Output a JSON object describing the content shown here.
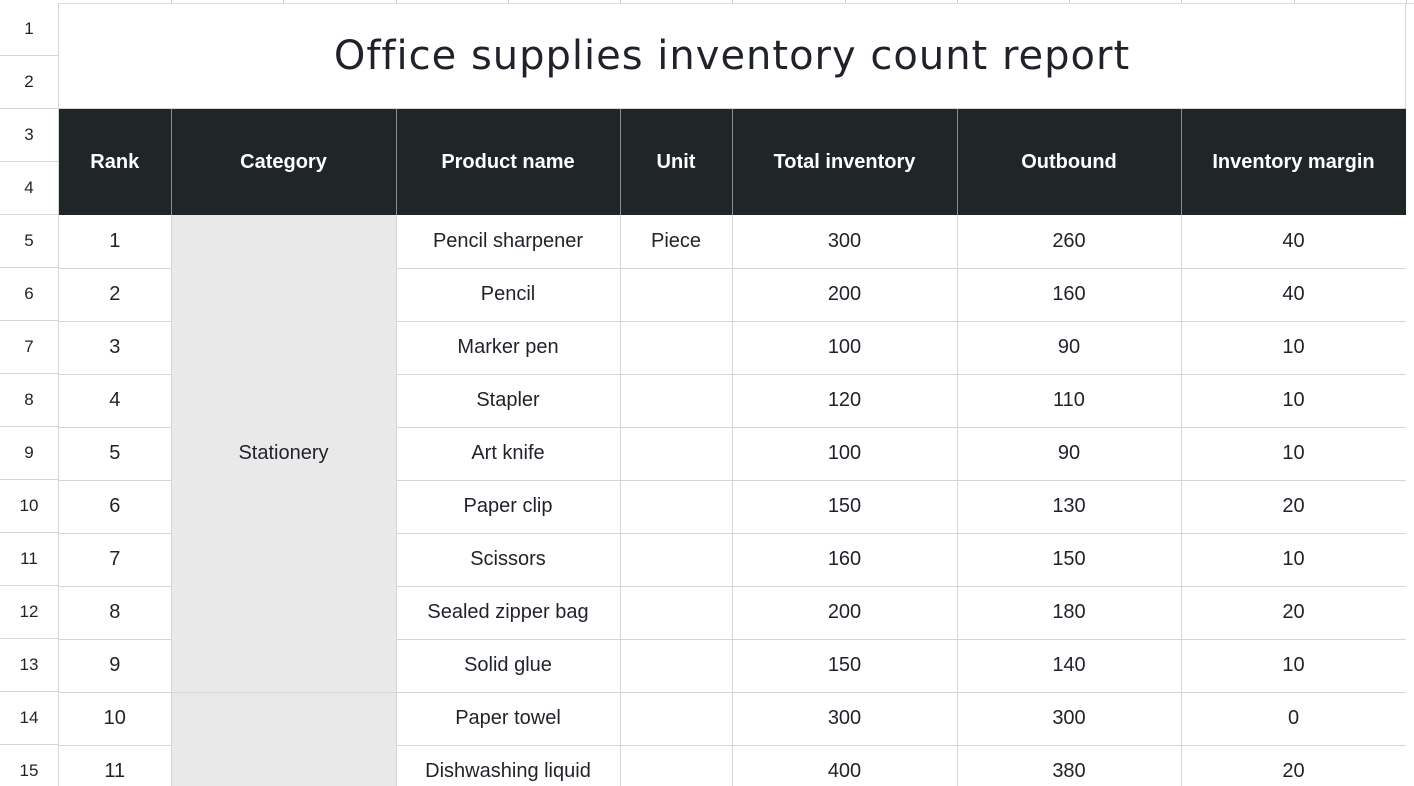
{
  "title": "Office supplies inventory count report",
  "row_numbers": [
    "1",
    "2",
    "3",
    "4",
    "5",
    "6",
    "7",
    "8",
    "9",
    "10",
    "11",
    "12",
    "13",
    "14",
    "15"
  ],
  "columns": [
    "Rank",
    "Category",
    "Product name",
    "Unit",
    "Total inventory",
    "Outbound",
    "Inventory margin"
  ],
  "category_groups": [
    {
      "label": "Stationery",
      "rowspan": 9
    },
    {
      "label": "",
      "rowspan": 2
    }
  ],
  "rows": [
    {
      "rank": "1",
      "product": "Pencil sharpener",
      "unit": "Piece",
      "total": "300",
      "outbound": "260",
      "margin": "40"
    },
    {
      "rank": "2",
      "product": "Pencil",
      "unit": "",
      "total": "200",
      "outbound": "160",
      "margin": "40"
    },
    {
      "rank": "3",
      "product": "Marker pen",
      "unit": "",
      "total": "100",
      "outbound": "90",
      "margin": "10"
    },
    {
      "rank": "4",
      "product": "Stapler",
      "unit": "",
      "total": "120",
      "outbound": "110",
      "margin": "10"
    },
    {
      "rank": "5",
      "product": "Art knife",
      "unit": "",
      "total": "100",
      "outbound": "90",
      "margin": "10"
    },
    {
      "rank": "6",
      "product": "Paper clip",
      "unit": "",
      "total": "150",
      "outbound": "130",
      "margin": "20"
    },
    {
      "rank": "7",
      "product": "Scissors",
      "unit": "",
      "total": "160",
      "outbound": "150",
      "margin": "10"
    },
    {
      "rank": "8",
      "product": "Sealed zipper bag",
      "unit": "",
      "total": "200",
      "outbound": "180",
      "margin": "20"
    },
    {
      "rank": "9",
      "product": "Solid glue",
      "unit": "",
      "total": "150",
      "outbound": "140",
      "margin": "10"
    },
    {
      "rank": "10",
      "product": "Paper towel",
      "unit": "",
      "total": "300",
      "outbound": "300",
      "margin": "0"
    },
    {
      "rank": "11",
      "product": "Dishwashing liquid",
      "unit": "",
      "total": "400",
      "outbound": "380",
      "margin": "20"
    }
  ],
  "colors": {
    "header_bg": "#202527",
    "header_text": "#ffffff",
    "category_bg": "#e9e9e9",
    "gridline": "#d6d6d6"
  }
}
